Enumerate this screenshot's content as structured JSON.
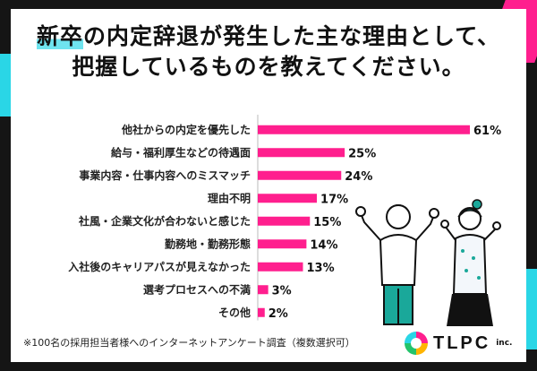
{
  "title": {
    "line1_highlight": "新卒",
    "line1_rest": "の内定辞退が発生した主な理由として、",
    "line2": "把握しているものを教えてください。"
  },
  "chart_data": {
    "type": "bar",
    "orientation": "horizontal",
    "categories": [
      "他社からの内定を優先した",
      "給与・福利厚生などの待遇面",
      "事業内容・仕事内容へのミスマッチ",
      "理由不明",
      "社風・企業文化が合わないと感じた",
      "勤務地・勤務形態",
      "入社後のキャリアパスが見えなかった",
      "選考プロセスへの不満",
      "その他"
    ],
    "values": [
      61,
      25,
      24,
      17,
      15,
      14,
      13,
      3,
      2
    ],
    "value_labels": [
      "61%",
      "25%",
      "24%",
      "17%",
      "15%",
      "14%",
      "13%",
      "3%",
      "2%"
    ],
    "bar_color": "#ff1f8e",
    "xlim": [
      0,
      61
    ]
  },
  "footnote": "※100名の採用担当者様へのインターネットアンケート調査（複数選択可）",
  "logo": {
    "text": "TLPC",
    "suffix": "inc."
  },
  "colors": {
    "accent_pink": "#ff1f8e",
    "accent_cyan": "#2ad6e6",
    "background": "#151515"
  }
}
